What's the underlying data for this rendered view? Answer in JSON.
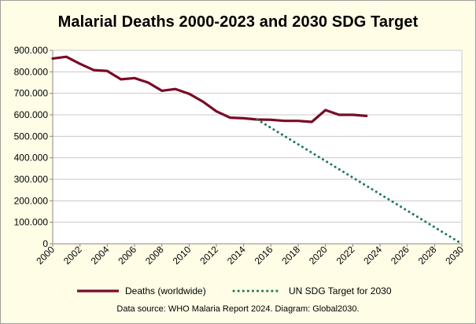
{
  "chart_data": {
    "type": "line",
    "title": "Malarial Deaths 2000-2023 and 2030 SDG Target",
    "xlabel": "",
    "ylabel": "",
    "xlim": [
      2000,
      2030
    ],
    "ylim": [
      0,
      900000
    ],
    "x_ticks": [
      "2000",
      "2002",
      "2004",
      "2006",
      "2008",
      "2010",
      "2012",
      "2014",
      "2016",
      "2018",
      "2020",
      "2022",
      "2024",
      "2026",
      "2028",
      "2030"
    ],
    "y_ticks": [
      "0",
      "100.000",
      "200.000",
      "300.000",
      "400.000",
      "500.000",
      "600.000",
      "700.000",
      "800.000",
      "900.000"
    ],
    "grid": true,
    "legend_position": "bottom",
    "series": [
      {
        "name": "Deaths (worldwide)",
        "color": "#7a0b26",
        "style": "solid",
        "x": [
          2000,
          2001,
          2002,
          2003,
          2004,
          2005,
          2006,
          2007,
          2008,
          2009,
          2010,
          2011,
          2012,
          2013,
          2014,
          2015,
          2016,
          2017,
          2018,
          2019,
          2020,
          2021,
          2022,
          2023
        ],
        "values": [
          862000,
          870000,
          837000,
          808000,
          804000,
          765000,
          771000,
          750000,
          712000,
          720000,
          698000,
          662000,
          616000,
          587000,
          584000,
          578000,
          577000,
          572000,
          572000,
          567000,
          622000,
          600000,
          600000,
          595000
        ]
      },
      {
        "name": "UN SDG Target for 2030",
        "color": "#1b7a52",
        "style": "dotted",
        "x": [
          2015,
          2030
        ],
        "values": [
          578000,
          0
        ]
      }
    ]
  },
  "source_text": "Data source: WHO Malaria Report 2024. Diagram: Global2030."
}
